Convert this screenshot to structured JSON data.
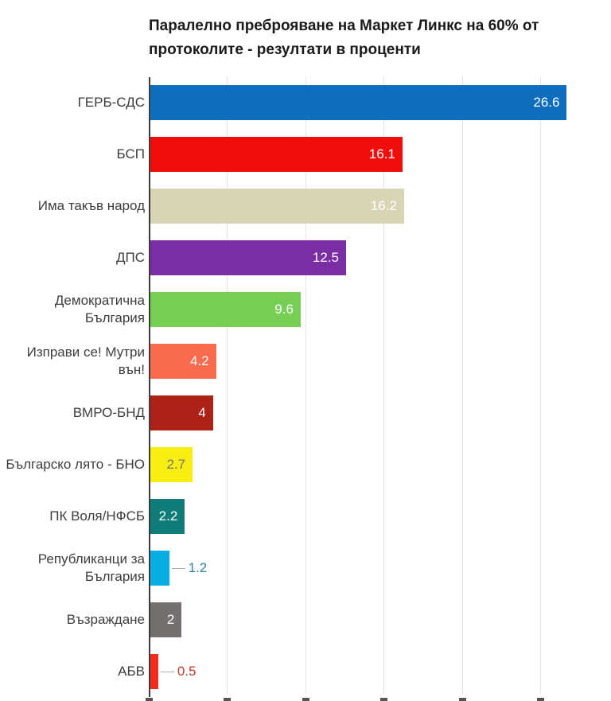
{
  "chart_data": {
    "type": "bar",
    "orientation": "horizontal",
    "title": "Паралелно преброяване на Маркет Линкс на 60% от протоколите - резултати в проценти",
    "xlabel": "",
    "ylabel": "",
    "xlim": [
      0,
      30
    ],
    "gridline_step": 5,
    "grid": "vertical",
    "legend": false,
    "axis_color": "#3d3d3d",
    "gridline_color": "#e3e3e3",
    "leader_line_color": "#ababab",
    "categories": [
      "ГЕРБ-СДС",
      "БСП",
      "Има такъв народ",
      "ДПС",
      "Демократична България",
      "Изправи се! Мутри вън!",
      "ВМРО-БНД",
      "Българско лято - БНО",
      "ПК Воля/НФСБ",
      "Републиканци за България",
      "Възраждане",
      "АБВ"
    ],
    "values": [
      26.6,
      16.1,
      16.2,
      12.5,
      9.6,
      4.2,
      4,
      2.7,
      2.2,
      1.2,
      2,
      0.5
    ],
    "bars": [
      {
        "category": "ГЕРБ-СДС",
        "value": 26.6,
        "label": "26.6",
        "color": "#0d6ebd",
        "label_placement": "inside",
        "label_color": "#ffffff"
      },
      {
        "category": "БСП",
        "value": 16.1,
        "label": "16.1",
        "color": "#f20d0d",
        "label_placement": "inside",
        "label_color": "#ffffff"
      },
      {
        "category": "Има такъв народ",
        "value": 16.2,
        "label": "16.2",
        "color": "#d7d5b4",
        "label_placement": "inside",
        "label_color": "#ffffff"
      },
      {
        "category": "ДПС",
        "value": 12.5,
        "label": "12.5",
        "color": "#7b2da3",
        "label_placement": "inside",
        "label_color": "#ffffff"
      },
      {
        "category": "Демократична България",
        "value": 9.6,
        "label": "9.6",
        "color": "#76ce55",
        "label_placement": "inside",
        "label_color": "#ffffff"
      },
      {
        "category": "Изправи се! Мутри вън!",
        "value": 4.2,
        "label": "4.2",
        "color": "#fa6a4c",
        "label_placement": "inside",
        "label_color": "#ffffff"
      },
      {
        "category": "ВМРО-БНД",
        "value": 4,
        "label": "4",
        "color": "#ad2015",
        "label_placement": "inside",
        "label_color": "#ffffff"
      },
      {
        "category": "Българско лято - БНО",
        "value": 2.7,
        "label": "2.7",
        "color": "#f8ee10",
        "label_placement": "inside",
        "label_color": "#757575"
      },
      {
        "category": "ПК Воля/НФСБ",
        "value": 2.2,
        "label": "2.2",
        "color": "#0e7d79",
        "label_placement": "inside",
        "label_color": "#ffffff"
      },
      {
        "category": "Републиканци за България",
        "value": 1.2,
        "label": "1.2",
        "color": "#05ade2",
        "label_placement": "outside",
        "label_color": "#3380aa"
      },
      {
        "category": "Възраждане",
        "value": 2,
        "label": "2",
        "color": "#747070",
        "label_placement": "inside",
        "label_color": "#ffffff"
      },
      {
        "category": "АБВ",
        "value": 0.5,
        "label": "0.5",
        "color": "#f42a1d",
        "label_placement": "outside",
        "label_color": "#c43a2e"
      }
    ]
  }
}
